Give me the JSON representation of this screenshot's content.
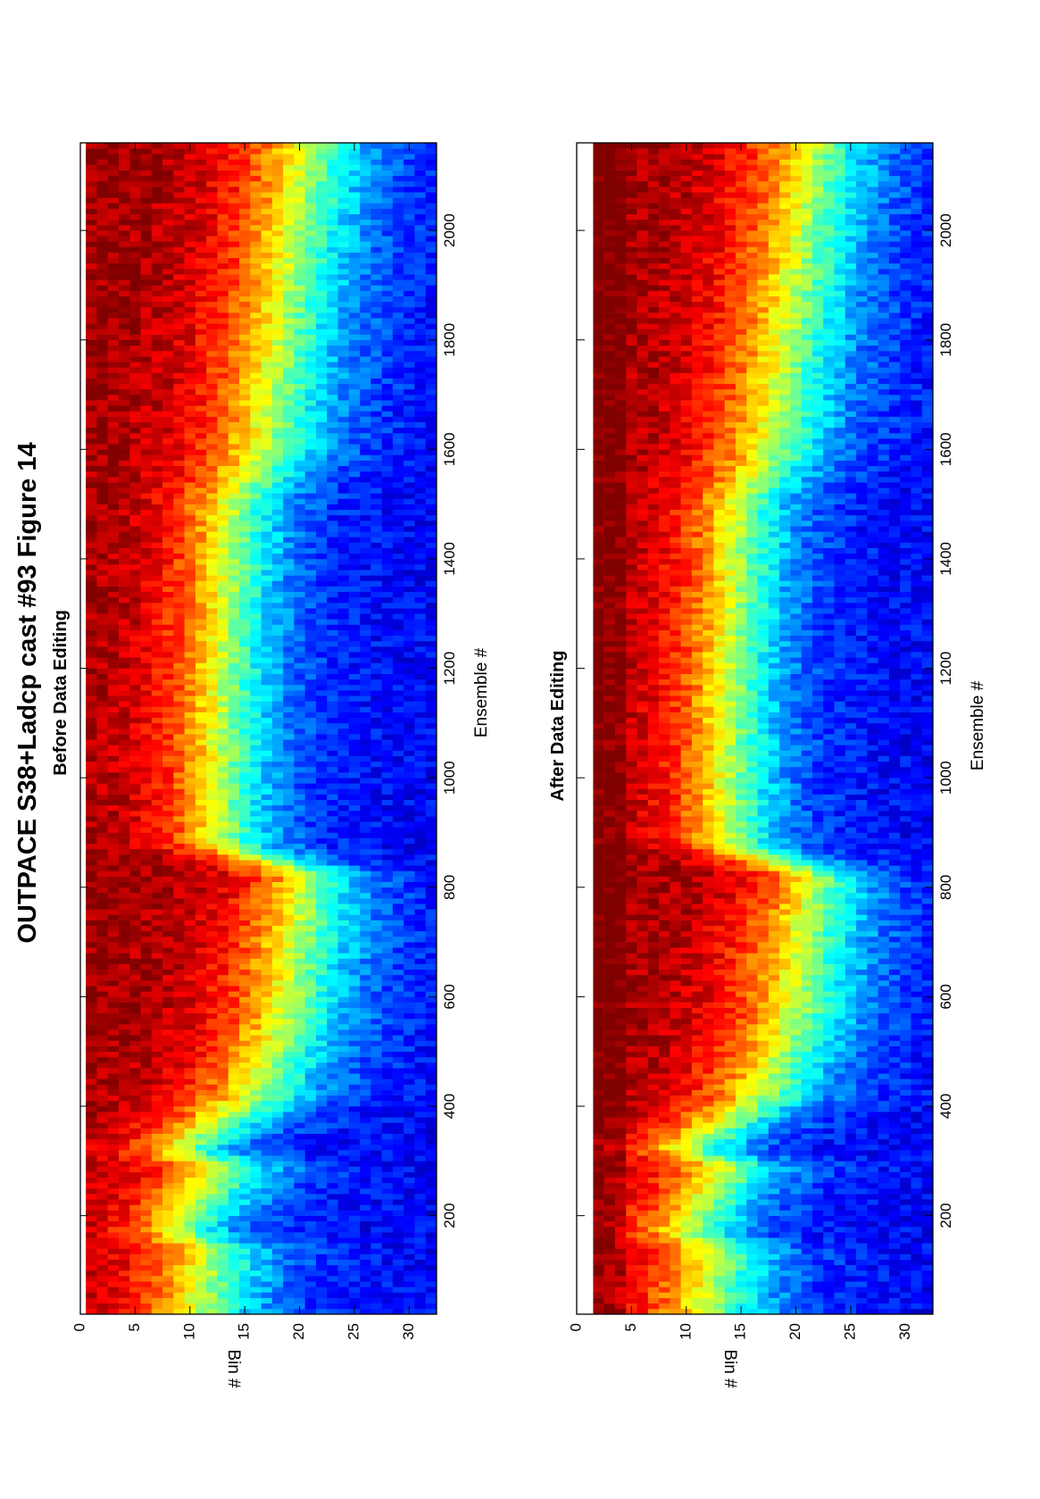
{
  "figure": {
    "title": "OUTPACE S38+Ladcp cast #93  Figure 14",
    "orientation": "rotated-90-ccw"
  },
  "chart_data": [
    {
      "type": "heatmap",
      "title": "Before Data Editing",
      "xlabel": "Ensemble #",
      "ylabel": "Bin #",
      "xlim": [
        20,
        2160
      ],
      "ylim": [
        0,
        32.5
      ],
      "y_reversed": true,
      "xticks": [
        200,
        400,
        600,
        800,
        1000,
        1200,
        1400,
        1600,
        1800,
        2000
      ],
      "yticks": [
        0,
        5,
        10,
        15,
        20,
        25,
        30
      ],
      "colormap": "jet",
      "grid": false,
      "first_bin": 1,
      "last_bin": 32,
      "description_rows": "bins 1-32 along y, ensembles along x; values high (red) near bin 1-3, decreasing to low (dark blue) at deep bins",
      "profile_keyframes": [
        {
          "ensemble": 20,
          "half_depth_bin": 11,
          "decay_width": 7
        },
        {
          "ensemble": 140,
          "half_depth_bin": 12,
          "decay_width": 7
        },
        {
          "ensemble": 170,
          "half_depth_bin": 9,
          "decay_width": 6
        },
        {
          "ensemble": 290,
          "half_depth_bin": 13,
          "decay_width": 7
        },
        {
          "ensemble": 320,
          "half_depth_bin": 9,
          "decay_width": 6
        },
        {
          "ensemble": 420,
          "half_depth_bin": 16,
          "decay_width": 7
        },
        {
          "ensemble": 560,
          "half_depth_bin": 19,
          "decay_width": 7
        },
        {
          "ensemble": 720,
          "half_depth_bin": 20,
          "decay_width": 7
        },
        {
          "ensemble": 820,
          "half_depth_bin": 21,
          "decay_width": 6
        },
        {
          "ensemble": 880,
          "half_depth_bin": 13,
          "decay_width": 6
        },
        {
          "ensemble": 1100,
          "half_depth_bin": 13,
          "decay_width": 6
        },
        {
          "ensemble": 1500,
          "half_depth_bin": 14,
          "decay_width": 6
        },
        {
          "ensemble": 1600,
          "half_depth_bin": 17,
          "decay_width": 7
        },
        {
          "ensemble": 2160,
          "half_depth_bin": 21,
          "decay_width": 7
        }
      ]
    },
    {
      "type": "heatmap",
      "title": "After Data Editing",
      "xlabel": "Ensemble #",
      "ylabel": "Bin #",
      "xlim": [
        20,
        2160
      ],
      "ylim": [
        0,
        32.5
      ],
      "y_reversed": true,
      "xticks": [
        200,
        400,
        600,
        800,
        1000,
        1200,
        1400,
        1600,
        1800,
        2000
      ],
      "yticks": [
        0,
        5,
        10,
        15,
        20,
        25,
        30
      ],
      "colormap": "jet",
      "grid": false,
      "first_bin": 2,
      "last_bin": 32,
      "description_rows": "bin 1 blanked (white) after editing; otherwise same structure with warmer near-surface values",
      "profile_keyframes": [
        {
          "ensemble": 20,
          "half_depth_bin": 12,
          "decay_width": 7
        },
        {
          "ensemble": 140,
          "half_depth_bin": 13,
          "decay_width": 7
        },
        {
          "ensemble": 170,
          "half_depth_bin": 10,
          "decay_width": 6
        },
        {
          "ensemble": 290,
          "half_depth_bin": 14,
          "decay_width": 7
        },
        {
          "ensemble": 320,
          "half_depth_bin": 10,
          "decay_width": 6
        },
        {
          "ensemble": 420,
          "half_depth_bin": 17,
          "decay_width": 7
        },
        {
          "ensemble": 560,
          "half_depth_bin": 20,
          "decay_width": 7
        },
        {
          "ensemble": 720,
          "half_depth_bin": 21,
          "decay_width": 7
        },
        {
          "ensemble": 820,
          "half_depth_bin": 22,
          "decay_width": 6
        },
        {
          "ensemble": 880,
          "half_depth_bin": 14,
          "decay_width": 6
        },
        {
          "ensemble": 1100,
          "half_depth_bin": 14,
          "decay_width": 6
        },
        {
          "ensemble": 1500,
          "half_depth_bin": 15,
          "decay_width": 6
        },
        {
          "ensemble": 1600,
          "half_depth_bin": 18,
          "decay_width": 7
        },
        {
          "ensemble": 2160,
          "half_depth_bin": 22,
          "decay_width": 7
        }
      ]
    }
  ]
}
